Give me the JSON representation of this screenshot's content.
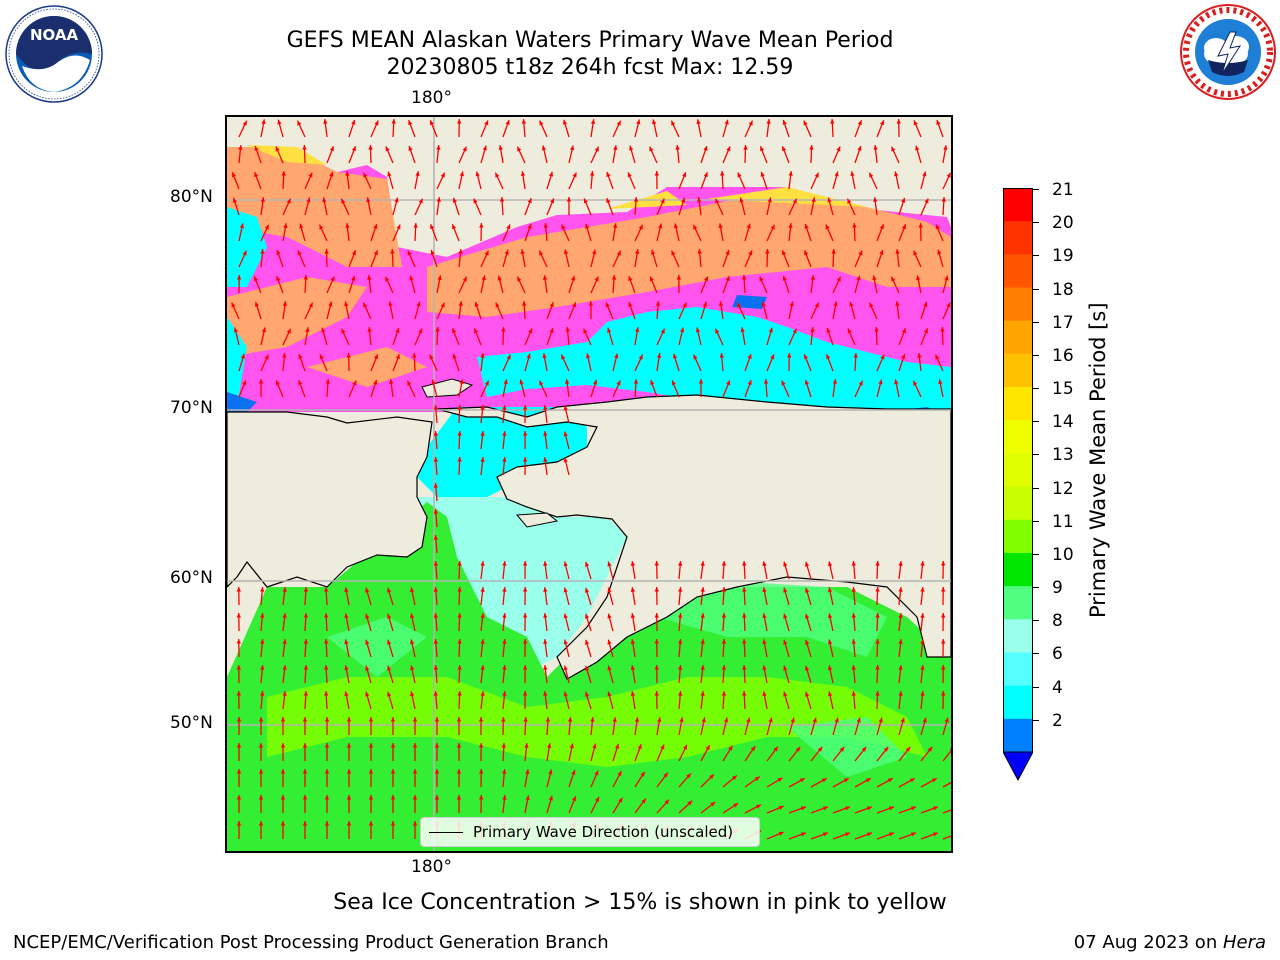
{
  "title": {
    "line1": "GEFS MEAN Alaskan Waters Primary Wave Mean Period",
    "line2": "20230805 t18z 264h fcst   Max: 12.59"
  },
  "logos": {
    "noaa": {
      "text": "NOAA",
      "ring_text": "NATIONAL OCEANIC AND ATMOSPHERIC ADMINISTRATION · U.S. DEPARTMENT OF COMMERCE"
    },
    "nws": {
      "ring_text": "NATIONAL WEATHER SERVICE"
    }
  },
  "map": {
    "lon_label_top": "180°",
    "lon_label_bottom": "180°",
    "lat_labels": [
      "80°N",
      "70°N",
      "60°N",
      "50°N"
    ],
    "legend_label": "Primary Wave Direction (unscaled)",
    "land_color": "#eeecdc",
    "grid": true
  },
  "colorbar": {
    "label": "Primary Wave Mean Period [s]",
    "ticks": [
      "21",
      "20",
      "19",
      "18",
      "17",
      "16",
      "15",
      "14",
      "13",
      "12",
      "11",
      "10",
      "9",
      "8",
      "6",
      "4",
      "2"
    ],
    "colors_top_to_bottom": [
      "#ff0000",
      "#ff3300",
      "#ff5500",
      "#ff7f00",
      "#ffa500",
      "#ffc000",
      "#ffe600",
      "#f0ff00",
      "#e0ff00",
      "#c8ff00",
      "#80ff00",
      "#00e600",
      "#50ff80",
      "#9affeb",
      "#55ffff",
      "#00ffff",
      "#0080ff"
    ],
    "extend_color": "#0000ff"
  },
  "notes": {
    "ice": "Sea Ice Concentration > 15% is shown in pink to yellow",
    "footer_left": "NCEP/EMC/Verification Post Processing Product Generation Branch",
    "footer_right_prefix": "07 Aug 2023 on ",
    "footer_right_host": "Hera"
  },
  "colors": {
    "arrow": "#ff0000",
    "ice_pink": "#ff55ee",
    "ice_orange": "#ffb060",
    "ocean_green": "#33ee33",
    "cyan": "#00ffff"
  }
}
